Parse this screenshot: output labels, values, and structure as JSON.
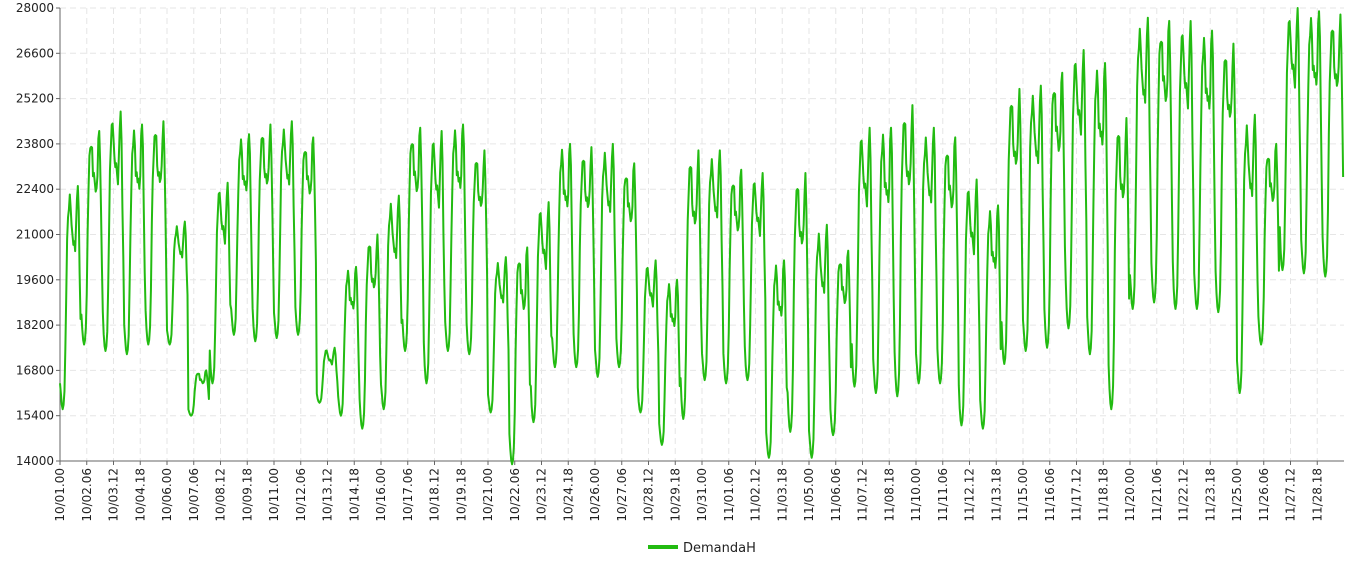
{
  "chart_data": {
    "type": "line",
    "title": "",
    "xlabel": "",
    "ylabel": "",
    "ylim": [
      14000,
      28000
    ],
    "y_ticks": [
      "14000",
      "15400",
      "16800",
      "18200",
      "19600",
      "21000",
      "22400",
      "23800",
      "25200",
      "26600",
      "28000"
    ],
    "x_ticks": [
      "10/01.00",
      "10/02.06",
      "10/03.12",
      "10/04.18",
      "10/06.00",
      "10/07.06",
      "10/08.12",
      "10/09.18",
      "10/11.00",
      "10/12.06",
      "10/13.12",
      "10/14.18",
      "10/16.00",
      "10/17.06",
      "10/18.12",
      "10/19.18",
      "10/21.00",
      "10/22.06",
      "10/23.12",
      "10/24.18",
      "10/26.00",
      "10/27.06",
      "10/28.12",
      "10/29.18",
      "10/31.00",
      "11/01.06",
      "11/02.12",
      "11/03.18",
      "11/05.00",
      "11/06.06",
      "11/07.12",
      "11/08.18",
      "11/10.00",
      "11/11.06",
      "11/12.12",
      "11/13.18",
      "11/15.00",
      "11/16.06",
      "11/17.12",
      "11/18.18",
      "11/20.00",
      "11/21.06",
      "11/22.12",
      "11/23.18",
      "11/25.00",
      "11/26.06",
      "11/27.12",
      "11/28.18"
    ],
    "grid": true,
    "legend_position": "bottom-center",
    "colors": {
      "series": "#22bb11",
      "grid": "#e6e6e6",
      "axis": "#666666"
    },
    "series": [
      {
        "name": "DemandaH",
        "time_resolution": "hourly",
        "start": "10/01.00",
        "daily_profile_shape": "two-peak (midday + evening)",
        "daily": [
          {
            "day": "10/01",
            "min": 15600,
            "peak": 22500
          },
          {
            "day": "10/02",
            "min": 17600,
            "peak": 24200
          },
          {
            "day": "10/03",
            "min": 17400,
            "peak": 24800
          },
          {
            "day": "10/04",
            "min": 17300,
            "peak": 24400
          },
          {
            "day": "10/05",
            "min": 17600,
            "peak": 24500
          },
          {
            "day": "10/06",
            "min": 17600,
            "peak": 21400
          },
          {
            "day": "10/07",
            "min": 15400,
            "peak": 16800
          },
          {
            "day": "10/08",
            "min": 16400,
            "peak": 22600
          },
          {
            "day": "10/09",
            "min": 17900,
            "peak": 24100
          },
          {
            "day": "10/10",
            "min": 17700,
            "peak": 24400
          },
          {
            "day": "10/11",
            "min": 17800,
            "peak": 24500
          },
          {
            "day": "10/12",
            "min": 17900,
            "peak": 24000
          },
          {
            "day": "10/13",
            "min": 15800,
            "peak": 17500
          },
          {
            "day": "10/14",
            "min": 15400,
            "peak": 20000
          },
          {
            "day": "10/15",
            "min": 15000,
            "peak": 21000
          },
          {
            "day": "10/16",
            "min": 15600,
            "peak": 22200
          },
          {
            "day": "10/17",
            "min": 17400,
            "peak": 24300
          },
          {
            "day": "10/18",
            "min": 16400,
            "peak": 24200
          },
          {
            "day": "10/19",
            "min": 17400,
            "peak": 24400
          },
          {
            "day": "10/20",
            "min": 17300,
            "peak": 23600
          },
          {
            "day": "10/21",
            "min": 15500,
            "peak": 20300
          },
          {
            "day": "10/22",
            "min": 13900,
            "peak": 20600
          },
          {
            "day": "10/23",
            "min": 15200,
            "peak": 22000
          },
          {
            "day": "10/24",
            "min": 16900,
            "peak": 23800
          },
          {
            "day": "10/25",
            "min": 16900,
            "peak": 23700
          },
          {
            "day": "10/26",
            "min": 16600,
            "peak": 23800
          },
          {
            "day": "10/27",
            "min": 16900,
            "peak": 23200
          },
          {
            "day": "10/28",
            "min": 15500,
            "peak": 20200
          },
          {
            "day": "10/29",
            "min": 14500,
            "peak": 19600
          },
          {
            "day": "10/30",
            "min": 15300,
            "peak": 23600
          },
          {
            "day": "10/31",
            "min": 16500,
            "peak": 23600
          },
          {
            "day": "11/01",
            "min": 16400,
            "peak": 23000
          },
          {
            "day": "11/02",
            "min": 16500,
            "peak": 22900
          },
          {
            "day": "11/03",
            "min": 14100,
            "peak": 20200
          },
          {
            "day": "11/04",
            "min": 14900,
            "peak": 22900
          },
          {
            "day": "11/05",
            "min": 14100,
            "peak": 21300
          },
          {
            "day": "11/06",
            "min": 14800,
            "peak": 20500
          },
          {
            "day": "11/07",
            "min": 16300,
            "peak": 24300
          },
          {
            "day": "11/08",
            "min": 16100,
            "peak": 24300
          },
          {
            "day": "11/09",
            "min": 16000,
            "peak": 25000
          },
          {
            "day": "11/10",
            "min": 16400,
            "peak": 24300
          },
          {
            "day": "11/11",
            "min": 16400,
            "peak": 24000
          },
          {
            "day": "11/12",
            "min": 15100,
            "peak": 22700
          },
          {
            "day": "11/13",
            "min": 15000,
            "peak": 21900
          },
          {
            "day": "11/14",
            "min": 17000,
            "peak": 25500
          },
          {
            "day": "11/15",
            "min": 17400,
            "peak": 25600
          },
          {
            "day": "11/16",
            "min": 17500,
            "peak": 26000
          },
          {
            "day": "11/17",
            "min": 18100,
            "peak": 26700
          },
          {
            "day": "11/18",
            "min": 17300,
            "peak": 26300
          },
          {
            "day": "11/19",
            "min": 15600,
            "peak": 24600
          },
          {
            "day": "11/20",
            "min": 18700,
            "peak": 27700
          },
          {
            "day": "11/21",
            "min": 18900,
            "peak": 27600
          },
          {
            "day": "11/22",
            "min": 18700,
            "peak": 27600
          },
          {
            "day": "11/23",
            "min": 18700,
            "peak": 27300
          },
          {
            "day": "11/24",
            "min": 18600,
            "peak": 26900
          },
          {
            "day": "11/25",
            "min": 16100,
            "peak": 24700
          },
          {
            "day": "11/26",
            "min": 17600,
            "peak": 23800
          },
          {
            "day": "11/27",
            "min": 19900,
            "peak": 28000
          },
          {
            "day": "11/28",
            "min": 19800,
            "peak": 27900
          },
          {
            "day": "11/29",
            "min": 19700,
            "peak": 27800
          }
        ]
      }
    ]
  }
}
